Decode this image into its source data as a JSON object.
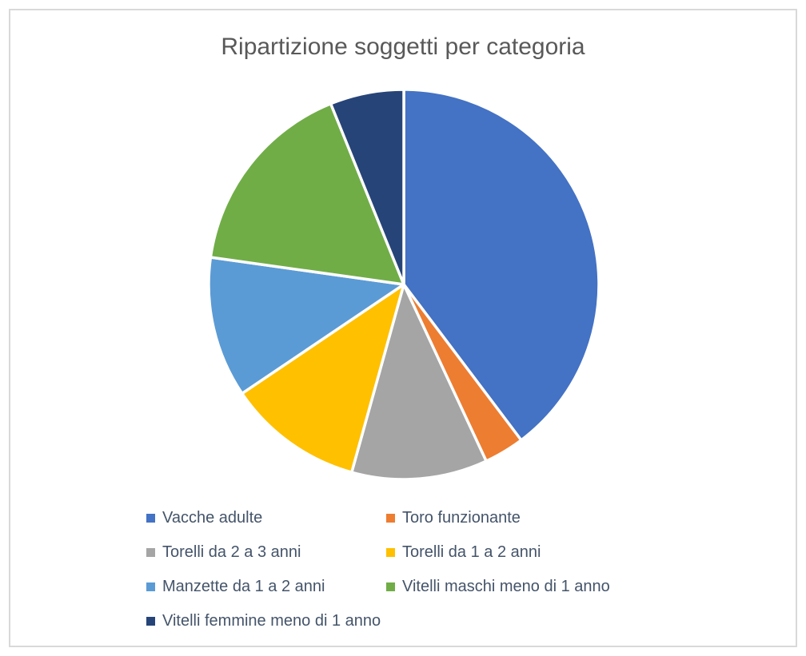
{
  "frame": {
    "border_color": "#D9D9D9",
    "background_color": "#FFFFFF"
  },
  "chart_data": {
    "type": "pie",
    "title": "Ripartizione soggetti per categoria",
    "categories": [
      "Vacche adulte",
      "Toro funzionante",
      "Torelli da 2 a 3 anni",
      "Torelli da 1 a 2 anni",
      "Manzette da 1 a 2 anni",
      "Vitelli maschi meno di 1 anno",
      "Vitelli femmine meno di 1 anno"
    ],
    "angles_deg": [
      143,
      12,
      40.5,
      40.5,
      42,
      60,
      22
    ],
    "values_pct_est": [
      39.7,
      3.3,
      11.3,
      11.3,
      11.7,
      16.7,
      6.1
    ],
    "colors": [
      "#4472C4",
      "#ED7D31",
      "#A5A5A5",
      "#FFC000",
      "#5B9BD5",
      "#70AD47",
      "#264478"
    ],
    "start_angle_deg": 0,
    "direction": "clockwise",
    "slice_border_color": "#FFFFFF",
    "legend_position": "bottom",
    "legend_columns": 2,
    "title_color": "#595959",
    "legend_text_color": "#44546A"
  }
}
